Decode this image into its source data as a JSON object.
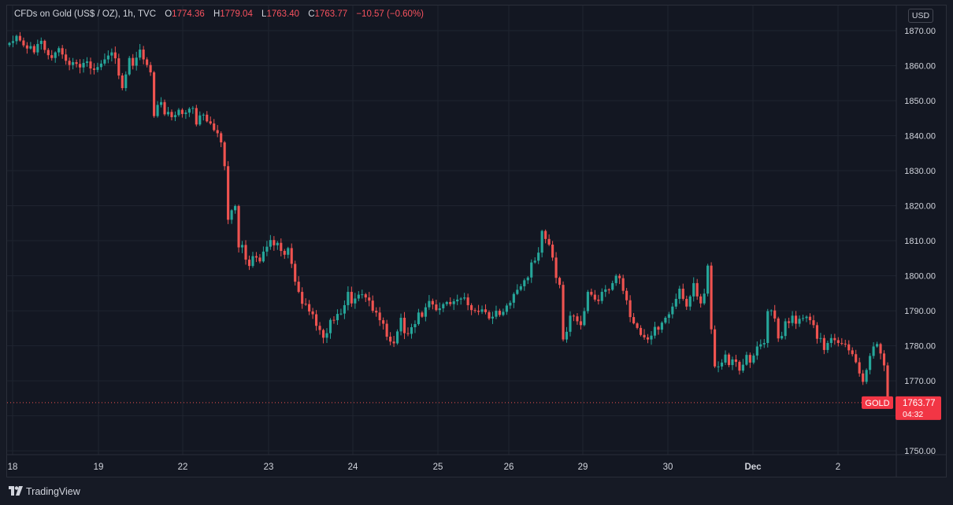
{
  "legend": {
    "symbol": "CFDs on Gold (US$ / OZ), 1h, TVC",
    "open_label": "O",
    "open": "1774.36",
    "high_label": "H",
    "high": "1779.04",
    "low_label": "L",
    "low": "1763.40",
    "close_label": "C",
    "close": "1763.77",
    "change": "−10.57 (−0.60%)"
  },
  "currency": "USD",
  "price_marker": {
    "symbol": "GOLD",
    "price": "1763.77",
    "countdown": "04:32"
  },
  "footer": {
    "brand": "TradingView"
  },
  "colors": {
    "background": "#131722",
    "up": "#26a69a",
    "down": "#ef5350",
    "grid": "#1f2430",
    "text": "#d1d4dc"
  },
  "chart_data": {
    "type": "candlestick",
    "title": "CFDs on Gold (US$ / OZ), 1h, TVC",
    "ylim": [
      1746,
      1872
    ],
    "yticks": [
      "1870.00",
      "1860.00",
      "1850.00",
      "1840.00",
      "1830.00",
      "1820.00",
      "1810.00",
      "1800.00",
      "1790.00",
      "1780.00",
      "1770.00",
      "1760.00",
      "1750.00"
    ],
    "xticks": [
      "18",
      "19",
      "22",
      "23",
      "24",
      "25",
      "26",
      "29",
      "30",
      "Dec",
      "2"
    ],
    "last_price": 1763.77,
    "series_close": [
      1866.5,
      1867.0,
      1868.5,
      1867.2,
      1865.8,
      1864.9,
      1865.6,
      1863.8,
      1866.2,
      1867.1,
      1864.5,
      1863.0,
      1862.2,
      1863.8,
      1865.0,
      1863.2,
      1861.4,
      1860.2,
      1861.0,
      1860.5,
      1859.5,
      1860.8,
      1861.2,
      1859.2,
      1858.8,
      1859.6,
      1860.6,
      1861.8,
      1862.9,
      1863.8,
      1862.1,
      1857.2,
      1853.6,
      1857.5,
      1862.2,
      1860.0,
      1862.3,
      1864.6,
      1861.8,
      1860.2,
      1858.1,
      1845.6,
      1848.8,
      1849.6,
      1846.1,
      1846.8,
      1845.3,
      1845.9,
      1847.4,
      1846.2,
      1846.6,
      1847.7,
      1847.9,
      1843.2,
      1845.8,
      1846.0,
      1844.1,
      1843.5,
      1841.6,
      1840.7,
      1838.1,
      1831.3,
      1816.0,
      1818.7,
      1819.9,
      1808.1,
      1808.8,
      1804.6,
      1802.8,
      1805.6,
      1805.2,
      1804.1,
      1806.9,
      1808.3,
      1810.2,
      1808.7,
      1809.4,
      1807.1,
      1806.0,
      1807.9,
      1803.4,
      1798.3,
      1795.4,
      1792.0,
      1791.9,
      1789.8,
      1789.0,
      1785.7,
      1784.5,
      1782.3,
      1783.6,
      1787.4,
      1787.3,
      1789.1,
      1789.2,
      1791.6,
      1795.4,
      1792.1,
      1793.5,
      1794.6,
      1794.7,
      1793.8,
      1792.9,
      1790.0,
      1789.5,
      1787.3,
      1786.3,
      1782.6,
      1781.2,
      1780.7,
      1784.1,
      1788.0,
      1783.6,
      1783.4,
      1785.3,
      1786.2,
      1789.5,
      1788.3,
      1791.0,
      1792.8,
      1791.8,
      1790.2,
      1790.7,
      1791.9,
      1792.5,
      1791.9,
      1792.7,
      1793.2,
      1793.5,
      1793.8,
      1791.6,
      1790.2,
      1790.0,
      1789.7,
      1790.4,
      1789.6,
      1787.8,
      1788.3,
      1790.0,
      1788.8,
      1789.7,
      1791.5,
      1792.3,
      1794.8,
      1796.0,
      1797.0,
      1798.7,
      1799.5,
      1803.8,
      1804.3,
      1806.6,
      1812.8,
      1810.5,
      1808.9,
      1805.2,
      1799.4,
      1797.4,
      1781.8,
      1784.0,
      1788.6,
      1788.4,
      1787.0,
      1785.9,
      1789.9,
      1795.4,
      1794.6,
      1793.2,
      1792.8,
      1795.4,
      1796.1,
      1796.0,
      1797.9,
      1800.0,
      1799.3,
      1795.7,
      1793.0,
      1788.2,
      1786.4,
      1785.1,
      1783.1,
      1782.4,
      1781.8,
      1782.9,
      1785.4,
      1784.6,
      1786.6,
      1788.0,
      1789.0,
      1791.2,
      1793.4,
      1796.3,
      1793.4,
      1791.2,
      1794.1,
      1797.9,
      1794.1,
      1792.1,
      1794.9,
      1802.9,
      1784.7,
      1774.1,
      1774.1,
      1775.2,
      1777.5,
      1774.5,
      1776.1,
      1775.4,
      1772.9,
      1774.6,
      1777.4,
      1775.2,
      1777.2,
      1779.8,
      1780.4,
      1780.8,
      1789.9,
      1790.1,
      1787.8,
      1782.1,
      1782.8,
      1787.0,
      1786.5,
      1788.6,
      1786.3,
      1787.7,
      1787.9,
      1788.3,
      1787.3,
      1785.9,
      1782.0,
      1782.2,
      1778.8,
      1780.8,
      1782.2,
      1781.6,
      1780.8,
      1780.6,
      1780.4,
      1778.7,
      1777.6,
      1775.3,
      1772.1,
      1769.7,
      1773.1,
      1777.1,
      1779.8,
      1780.5,
      1777.8,
      1774.4,
      1763.8
    ]
  }
}
